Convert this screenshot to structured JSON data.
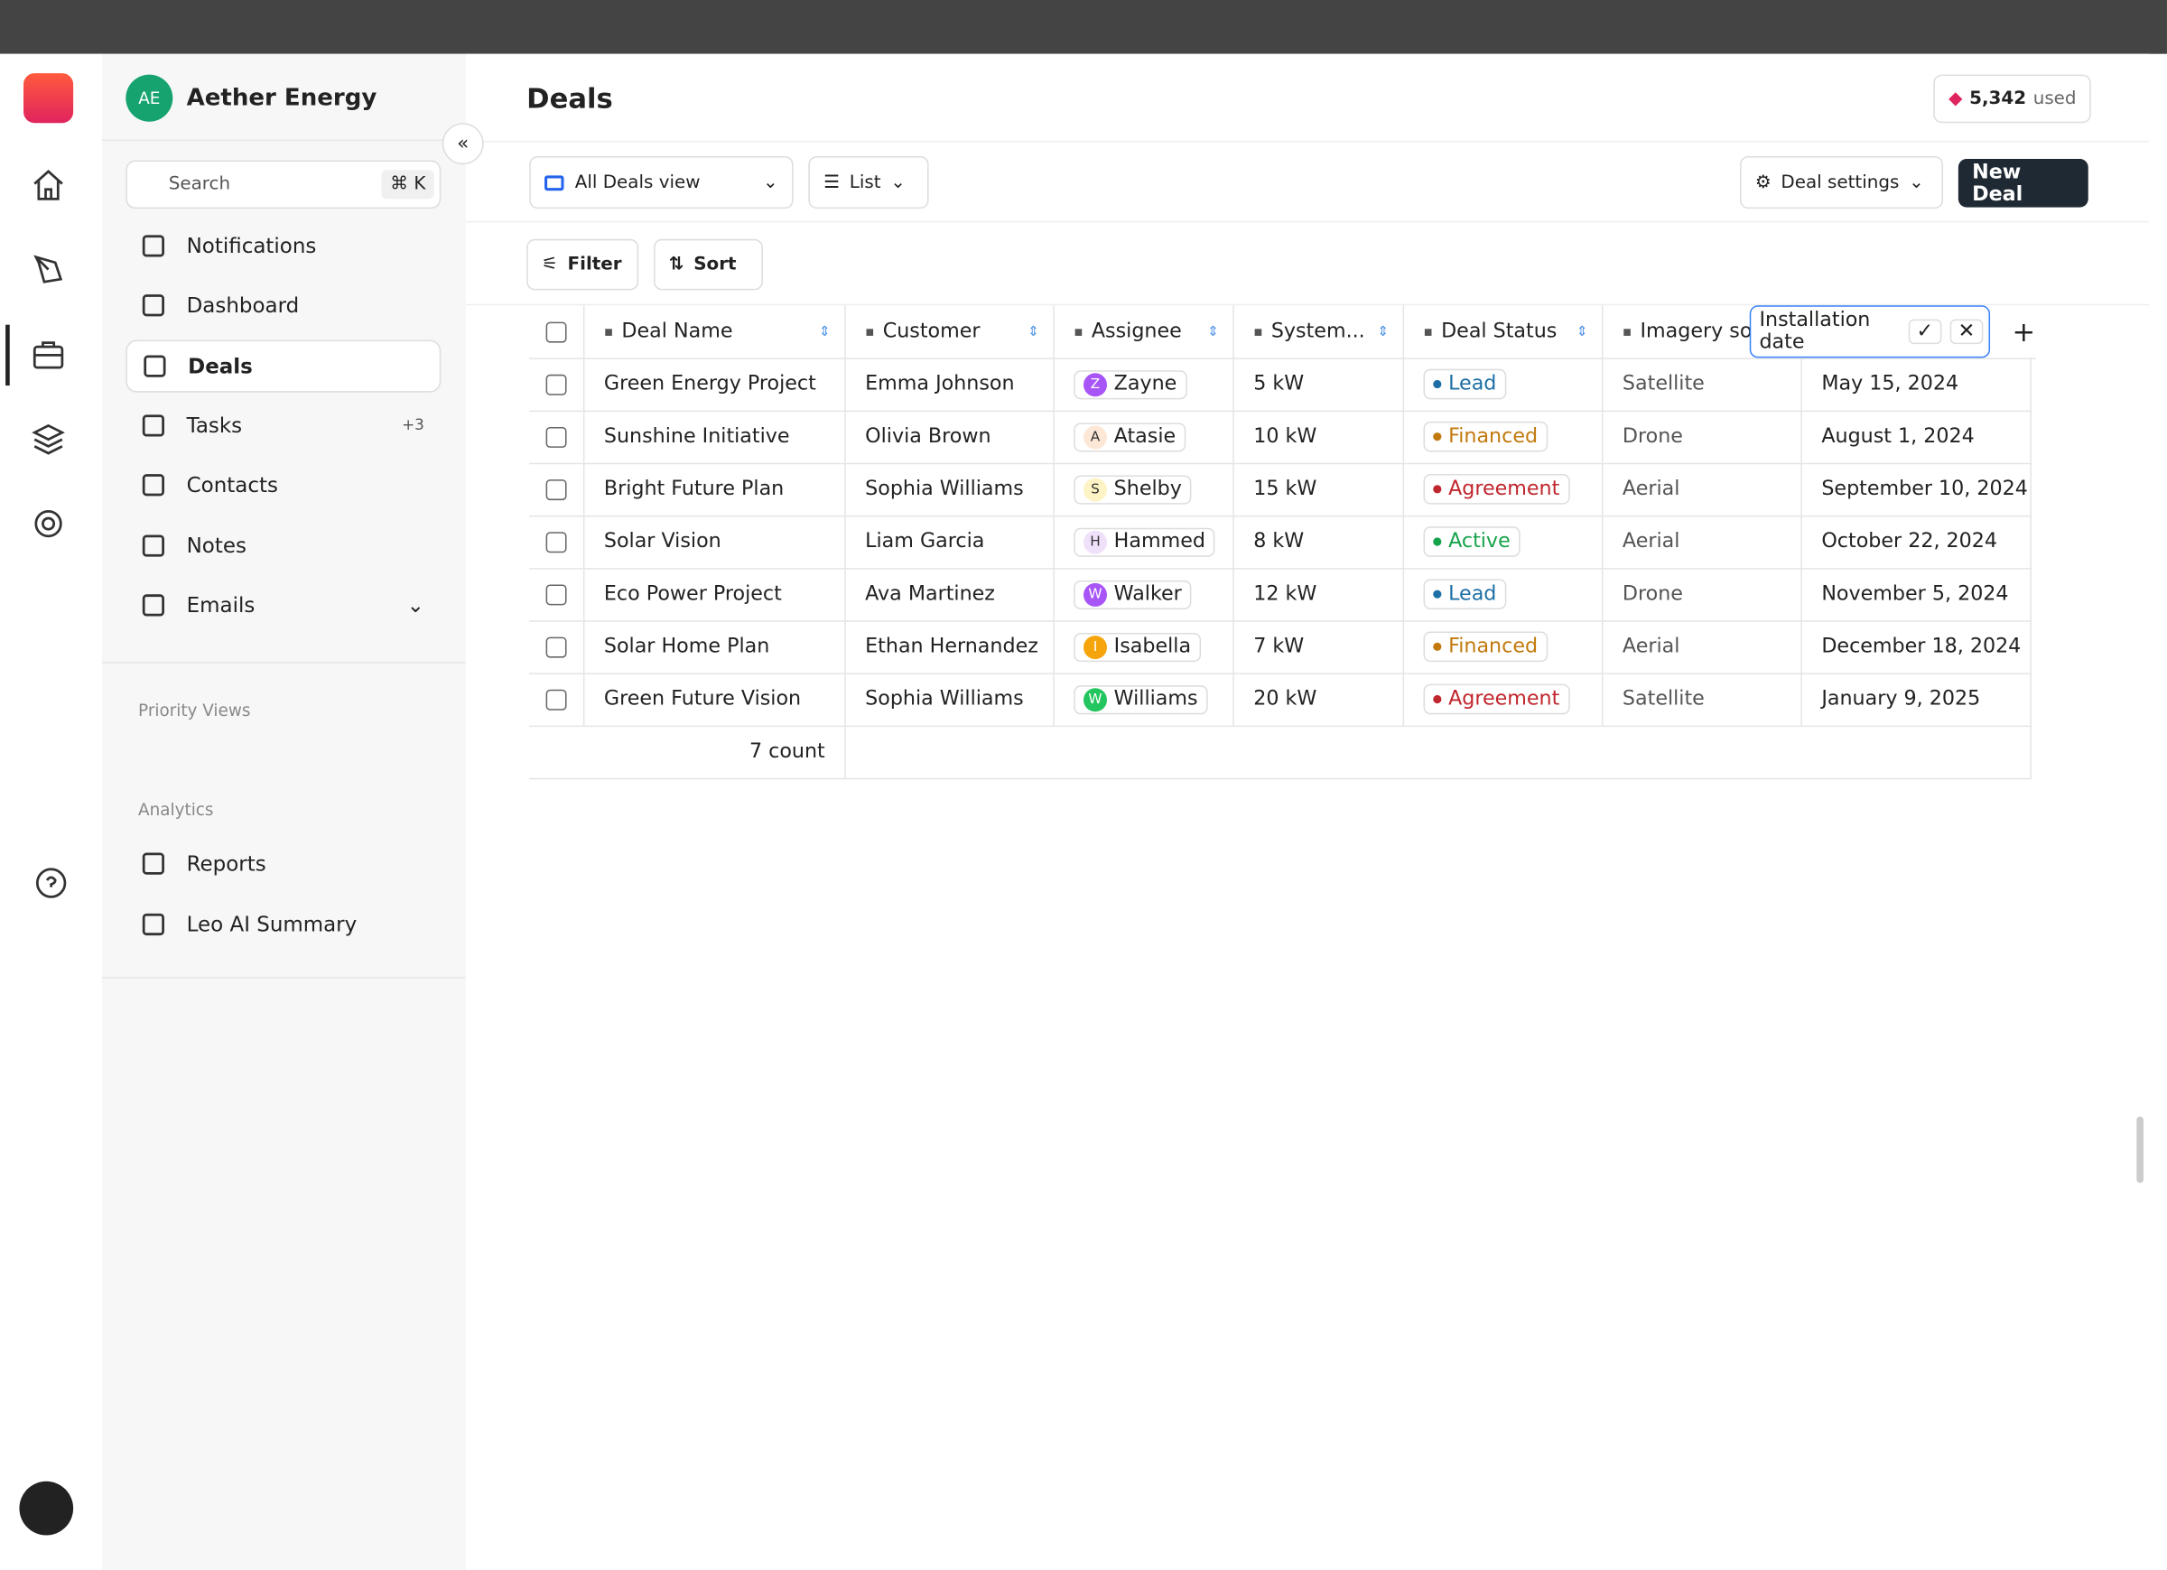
{
  "workspace": {
    "initials": "AE",
    "name": "Aether Energy"
  },
  "header": {
    "title": "Deals",
    "usage": "5,342",
    "usage_suffix": "used"
  },
  "sidebar": {
    "search": "Search",
    "shortcut": "⌘ K",
    "nav": [
      {
        "label": "Notifications"
      },
      {
        "label": "Dashboard"
      },
      {
        "label": "Deals",
        "active": true
      },
      {
        "label": "Tasks",
        "badge": "+3"
      },
      {
        "label": "Contacts"
      },
      {
        "label": "Notes"
      },
      {
        "label": "Emails",
        "expandable": true
      }
    ],
    "priority_title": "Priority Views",
    "analytics_title": "Analytics",
    "analytics": [
      {
        "label": "Reports"
      },
      {
        "label": "Leo AI Summary"
      }
    ]
  },
  "toolbar": {
    "view": "All Deals view",
    "layout": "List",
    "settings": "Deal settings",
    "new_deal": "New Deal",
    "filter": "Filter",
    "sort": "Sort"
  },
  "table": {
    "columns": [
      "Deal Name",
      "Customer",
      "Assignee",
      "System...",
      "Deal Status",
      "Imagery so"
    ],
    "new_column_input": "Installation date",
    "rows": [
      {
        "deal": "Green Energy Project",
        "customer": "Emma Johnson",
        "assignee_initial": "Z",
        "assignee": "Zayne",
        "avatar_color": "#a855f7",
        "system": "5 kW",
        "status": "Lead",
        "status_color": "#1d6fa5",
        "imagery": "Satellite",
        "installation": "May 15, 2024"
      },
      {
        "deal": "Sunshine Initiative",
        "customer": "Olivia Brown",
        "assignee_initial": "A",
        "assignee": "Atasie",
        "avatar_color": "#fde7d6",
        "system": "10 kW",
        "status": "Financed",
        "status_color": "#c27a0e",
        "imagery": "Drone",
        "installation": "August 1, 2024"
      },
      {
        "deal": "Bright Future Plan",
        "customer": "Sophia Williams",
        "assignee_initial": "S",
        "assignee": "Shelby",
        "avatar_color": "#fdf3c4",
        "system": "15 kW",
        "status": "Agreement",
        "status_color": "#c0262d",
        "imagery": "Aerial",
        "installation": "September 10, 2024"
      },
      {
        "deal": "Solar Vision",
        "customer": "Liam Garcia",
        "assignee_initial": "H",
        "assignee": "Hammed",
        "avatar_color": "#f0e1fb",
        "system": "8 kW",
        "status": "Active",
        "status_color": "#16a34a",
        "imagery": "Aerial",
        "installation": "October 22, 2024"
      },
      {
        "deal": "Eco Power Project",
        "customer": "Ava Martinez",
        "assignee_initial": "W",
        "assignee": "Walker",
        "avatar_color": "#a855f7",
        "system": "12 kW",
        "status": "Lead",
        "status_color": "#1d6fa5",
        "imagery": "Drone",
        "installation": "November 5, 2024"
      },
      {
        "deal": "Solar Home Plan",
        "customer": "Ethan Hernandez",
        "assignee_initial": "I",
        "assignee": "Isabella",
        "avatar_color": "#f5a50b",
        "system": "7 kW",
        "status": "Financed",
        "status_color": "#c27a0e",
        "imagery": "Aerial",
        "installation": "December 18, 2024"
      },
      {
        "deal": "Green Future Vision",
        "customer": "Sophia Williams",
        "assignee_initial": "W",
        "assignee": "Williams",
        "avatar_color": "#22c55e",
        "system": "20 kW",
        "status": "Agreement",
        "status_color": "#c0262d",
        "imagery": "Satellite",
        "installation": "January 9, 2025"
      }
    ],
    "footer": "7 count"
  }
}
